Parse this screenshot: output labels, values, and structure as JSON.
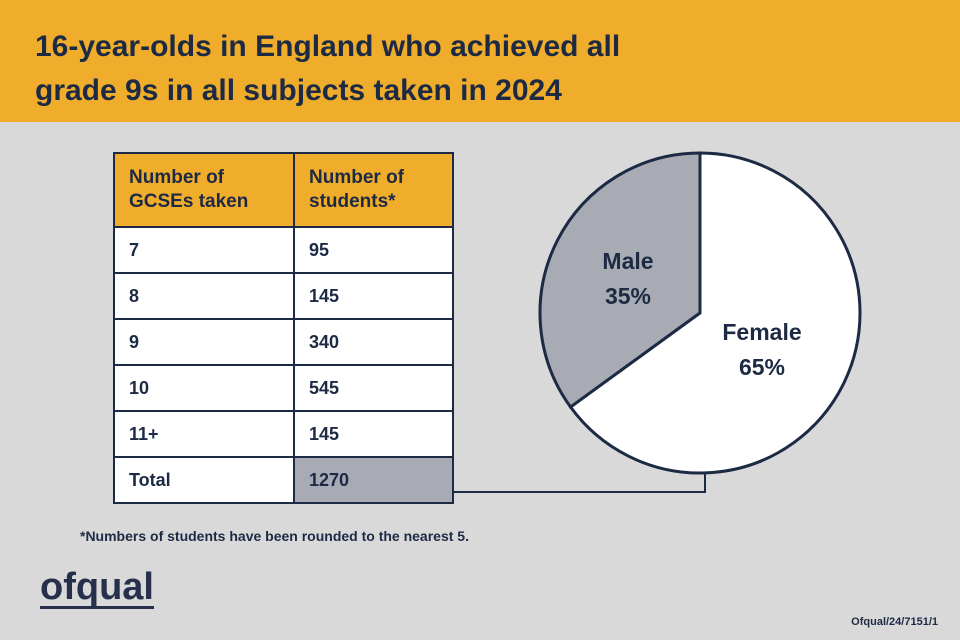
{
  "header": {
    "title_lines": [
      "16-year-olds in England who achieved all",
      "grade 9s in all subjects taken in 2024"
    ]
  },
  "table": {
    "header": [
      "Number of GCSEs taken",
      "Number of students*"
    ],
    "rows": [
      [
        "7",
        95
      ],
      [
        "8",
        145
      ],
      [
        "9",
        340
      ],
      [
        "10",
        545
      ],
      [
        "11+",
        145
      ],
      [
        "Total",
        1270
      ]
    ]
  },
  "footnote": "*Numbers of students have been rounded to the nearest 5.",
  "logo": "ofqual",
  "reference": "Ofqual/24/7151/1",
  "chart_data": {
    "type": "pie",
    "categories": [
      "Male",
      "Female"
    ],
    "values": [
      35,
      65
    ],
    "value_labels": [
      "35%",
      "65%"
    ],
    "colors": [
      "#a8abb3",
      "#ffffff"
    ]
  }
}
